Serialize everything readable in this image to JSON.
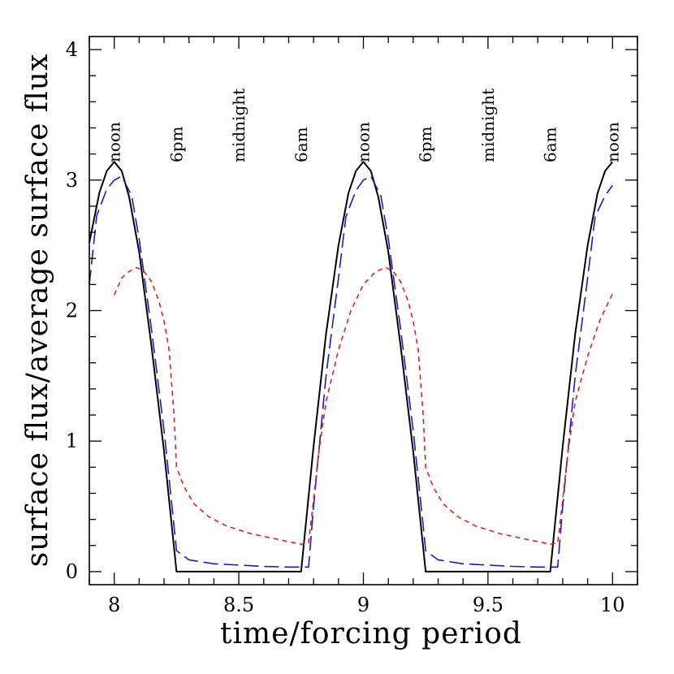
{
  "chart_data": {
    "type": "line",
    "title": "",
    "xlabel": "time/forcing period",
    "ylabel": "surface flux/average surface flux",
    "xlim": [
      7.9,
      10.1
    ],
    "ylim": [
      -0.1,
      4.1
    ],
    "x_ticks": [
      8,
      8.5,
      9,
      9.5,
      10
    ],
    "x_tick_labels": [
      "8",
      "8.5",
      "9",
      "9.5",
      "10"
    ],
    "y_ticks": [
      0,
      1,
      2,
      3,
      4
    ],
    "y_tick_labels": [
      "0",
      "1",
      "2",
      "3",
      "4"
    ],
    "time_of_day_labels": [
      {
        "x": 8.0,
        "text": "noon"
      },
      {
        "x": 8.25,
        "text": "6pm"
      },
      {
        "x": 8.5,
        "text": "midnight"
      },
      {
        "x": 8.75,
        "text": "6am"
      },
      {
        "x": 9.0,
        "text": "noon"
      },
      {
        "x": 9.25,
        "text": "6pm"
      },
      {
        "x": 9.5,
        "text": "midnight"
      },
      {
        "x": 9.75,
        "text": "6am"
      },
      {
        "x": 10.0,
        "text": "noon"
      }
    ],
    "grid": false,
    "series": [
      {
        "color": "#000000",
        "style": "solid",
        "points": [
          [
            7.9,
            2.52
          ],
          [
            7.94,
            2.9
          ],
          [
            7.97,
            3.07
          ],
          [
            8.0,
            3.14
          ],
          [
            8.03,
            3.07
          ],
          [
            8.06,
            2.87
          ],
          [
            8.1,
            2.45
          ],
          [
            8.15,
            1.72
          ],
          [
            8.2,
            0.92
          ],
          [
            8.25,
            0.0
          ],
          [
            8.75,
            0.0
          ],
          [
            8.8,
            0.96
          ],
          [
            8.85,
            1.82
          ],
          [
            8.9,
            2.5
          ],
          [
            8.94,
            2.9
          ],
          [
            8.97,
            3.07
          ],
          [
            9.0,
            3.14
          ],
          [
            9.03,
            3.07
          ],
          [
            9.06,
            2.87
          ],
          [
            9.1,
            2.45
          ],
          [
            9.15,
            1.72
          ],
          [
            9.2,
            0.92
          ],
          [
            9.25,
            0.0
          ],
          [
            9.75,
            0.0
          ],
          [
            9.8,
            0.96
          ],
          [
            9.85,
            1.82
          ],
          [
            9.9,
            2.5
          ],
          [
            9.94,
            2.9
          ],
          [
            9.97,
            3.07
          ],
          [
            10.0,
            3.14
          ]
        ]
      },
      {
        "color": "#1a1acc",
        "style": "dashed",
        "points": [
          [
            7.9,
            2.2
          ],
          [
            7.93,
            2.73
          ],
          [
            7.97,
            2.93
          ],
          [
            8.0,
            3.0
          ],
          [
            8.03,
            3.03
          ],
          [
            8.07,
            2.88
          ],
          [
            8.1,
            2.55
          ],
          [
            8.15,
            1.85
          ],
          [
            8.2,
            1.08
          ],
          [
            8.24,
            0.35
          ],
          [
            8.25,
            0.16
          ],
          [
            8.3,
            0.09
          ],
          [
            8.4,
            0.06
          ],
          [
            8.5,
            0.05
          ],
          [
            8.6,
            0.04
          ],
          [
            8.7,
            0.035
          ],
          [
            8.78,
            0.035
          ],
          [
            8.8,
            0.5
          ],
          [
            8.85,
            1.5
          ],
          [
            8.9,
            2.25
          ],
          [
            8.93,
            2.72
          ],
          [
            8.97,
            2.92
          ],
          [
            9.0,
            3.0
          ],
          [
            9.03,
            3.03
          ],
          [
            9.07,
            2.88
          ],
          [
            9.1,
            2.55
          ],
          [
            9.15,
            1.85
          ],
          [
            9.2,
            1.08
          ],
          [
            9.24,
            0.35
          ],
          [
            9.25,
            0.16
          ],
          [
            9.3,
            0.09
          ],
          [
            9.4,
            0.06
          ],
          [
            9.5,
            0.05
          ],
          [
            9.6,
            0.04
          ],
          [
            9.7,
            0.035
          ],
          [
            9.78,
            0.035
          ],
          [
            9.8,
            0.5
          ],
          [
            9.85,
            1.5
          ],
          [
            9.9,
            2.25
          ],
          [
            9.93,
            2.72
          ],
          [
            9.97,
            2.88
          ],
          [
            10.0,
            2.96
          ]
        ]
      },
      {
        "color": "#e02020",
        "style": "dotted",
        "points": [
          [
            8.0,
            2.12
          ],
          [
            8.03,
            2.25
          ],
          [
            8.06,
            2.3
          ],
          [
            8.09,
            2.33
          ],
          [
            8.12,
            2.3
          ],
          [
            8.15,
            2.22
          ],
          [
            8.18,
            2.07
          ],
          [
            8.2,
            1.92
          ],
          [
            8.22,
            1.7
          ],
          [
            8.24,
            1.2
          ],
          [
            8.25,
            0.8
          ],
          [
            8.28,
            0.65
          ],
          [
            8.32,
            0.52
          ],
          [
            8.38,
            0.42
          ],
          [
            8.45,
            0.35
          ],
          [
            8.55,
            0.29
          ],
          [
            8.65,
            0.25
          ],
          [
            8.75,
            0.21
          ],
          [
            8.78,
            0.22
          ],
          [
            8.8,
            0.55
          ],
          [
            8.82,
            0.9
          ],
          [
            8.85,
            1.3
          ],
          [
            8.9,
            1.7
          ],
          [
            8.95,
            2.0
          ],
          [
            9.0,
            2.2
          ],
          [
            9.05,
            2.3
          ],
          [
            9.09,
            2.33
          ],
          [
            9.12,
            2.3
          ],
          [
            9.15,
            2.22
          ],
          [
            9.18,
            2.07
          ],
          [
            9.2,
            1.92
          ],
          [
            9.22,
            1.7
          ],
          [
            9.24,
            1.2
          ],
          [
            9.25,
            0.8
          ],
          [
            9.28,
            0.65
          ],
          [
            9.32,
            0.52
          ],
          [
            9.38,
            0.42
          ],
          [
            9.45,
            0.35
          ],
          [
            9.55,
            0.29
          ],
          [
            9.65,
            0.25
          ],
          [
            9.75,
            0.21
          ],
          [
            9.78,
            0.22
          ],
          [
            9.8,
            0.55
          ],
          [
            9.82,
            0.9
          ],
          [
            9.85,
            1.3
          ],
          [
            9.9,
            1.65
          ],
          [
            9.95,
            1.93
          ],
          [
            10.0,
            2.13
          ]
        ]
      }
    ]
  }
}
